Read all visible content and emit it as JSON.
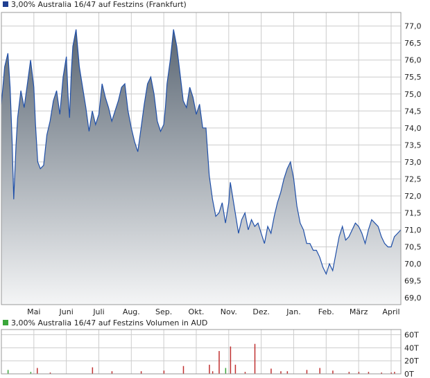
{
  "colors": {
    "price_line": "#1f4fa8",
    "area_top": "#5a6673",
    "area_bottom": "#f4f5f6",
    "grid": "#cccccc",
    "frame": "#999999",
    "volume_up": "#3aa63a",
    "volume_down": "#c03030",
    "legend_price": "#1f3f91",
    "legend_volume": "#3aa63a"
  },
  "chart_data": [
    {
      "type": "area",
      "legend": "3,00% Australia 16/47 auf Festzins (Frankfurt)",
      "y_axis_side": "right",
      "ylim": [
        68.8,
        77.4
      ],
      "yticks": [
        "77,0",
        "76,5",
        "76,0",
        "75,5",
        "75,0",
        "74,5",
        "74,0",
        "73,5",
        "73,0",
        "72,5",
        "72,0",
        "71,5",
        "71,0",
        "70,5",
        "70,0",
        "69,5",
        "69,0"
      ],
      "ytick_values": [
        77.0,
        76.5,
        76.0,
        75.5,
        75.0,
        74.5,
        74.0,
        73.5,
        73.0,
        72.5,
        72.0,
        71.5,
        71.0,
        70.5,
        70.0,
        69.5,
        69.0
      ],
      "x_range": [
        0,
        12.3
      ],
      "xticks": [
        "Mai",
        "Juni",
        "Juli",
        "Aug.",
        "Sep.",
        "Okt.",
        "Nov.",
        "Dez.",
        "Jan.",
        "Feb.",
        "März",
        "April"
      ],
      "xtick_positions": [
        1,
        2,
        3,
        4,
        5,
        6,
        7,
        8,
        9,
        10,
        11,
        12
      ],
      "grid": true,
      "series": [
        {
          "x": [
            0.0,
            0.1,
            0.2,
            0.27,
            0.33,
            0.38,
            0.45,
            0.5,
            0.6,
            0.7,
            0.8,
            0.9,
            1.0,
            1.05,
            1.12,
            1.2,
            1.3,
            1.4,
            1.5,
            1.6,
            1.7,
            1.8,
            1.9,
            2.0,
            2.05,
            2.1,
            2.15,
            2.2,
            2.3,
            2.4,
            2.5,
            2.6,
            2.7,
            2.8,
            2.9,
            3.0,
            3.1,
            3.2,
            3.3,
            3.4,
            3.5,
            3.6,
            3.7,
            3.8,
            3.9,
            4.0,
            4.1,
            4.2,
            4.3,
            4.4,
            4.5,
            4.6,
            4.7,
            4.8,
            4.9,
            5.0,
            5.05,
            5.1,
            5.2,
            5.3,
            5.4,
            5.5,
            5.6,
            5.7,
            5.8,
            5.9,
            6.0,
            6.1,
            6.2,
            6.3,
            6.4,
            6.5,
            6.6,
            6.7,
            6.8,
            6.9,
            7.0,
            7.05,
            7.1,
            7.2,
            7.3,
            7.4,
            7.5,
            7.6,
            7.7,
            7.8,
            7.9,
            8.0,
            8.1,
            8.2,
            8.3,
            8.4,
            8.5,
            8.6,
            8.7,
            8.8,
            8.9,
            9.0,
            9.1,
            9.2,
            9.3,
            9.4,
            9.5,
            9.6,
            9.7,
            9.8,
            9.9,
            10.0,
            10.1,
            10.2,
            10.3,
            10.4,
            10.5,
            10.6,
            10.7,
            10.8,
            10.9,
            11.0,
            11.1,
            11.2,
            11.3,
            11.4,
            11.5,
            11.6,
            11.7,
            11.8,
            11.9,
            12.0,
            12.1,
            12.2,
            12.3
          ],
          "y": [
            74.7,
            75.8,
            76.2,
            75.2,
            73.6,
            71.9,
            73.5,
            74.3,
            75.1,
            74.6,
            75.3,
            76.0,
            75.2,
            74.1,
            73.0,
            72.8,
            72.9,
            73.8,
            74.2,
            74.8,
            75.1,
            74.4,
            75.5,
            76.1,
            75.0,
            74.3,
            75.6,
            76.4,
            76.9,
            75.8,
            75.2,
            74.6,
            73.9,
            74.5,
            74.1,
            74.4,
            75.3,
            74.9,
            74.6,
            74.2,
            74.5,
            74.8,
            75.2,
            75.3,
            74.5,
            74.0,
            73.6,
            73.3,
            74.0,
            74.7,
            75.3,
            75.5,
            75.0,
            74.2,
            73.9,
            74.1,
            74.6,
            75.3,
            76.0,
            76.9,
            76.4,
            75.6,
            74.8,
            74.6,
            75.2,
            74.9,
            74.4,
            74.7,
            74.0,
            74.0,
            72.6,
            71.9,
            71.4,
            71.5,
            71.8,
            71.2,
            71.8,
            72.4,
            72.1,
            71.5,
            70.9,
            71.3,
            71.5,
            71.0,
            71.3,
            71.1,
            71.2,
            70.9,
            70.6,
            71.1,
            70.9,
            71.4,
            71.8,
            72.1,
            72.5,
            72.8,
            73.0,
            72.5,
            71.7,
            71.2,
            71.0,
            70.6,
            70.6,
            70.4,
            70.4,
            70.2,
            69.9,
            69.7,
            70.0,
            69.8,
            70.3,
            70.8,
            71.1,
            70.7,
            70.8,
            71.0,
            71.2,
            71.1,
            70.9,
            70.6,
            71.0,
            71.3,
            71.2,
            71.1,
            70.8,
            70.6,
            70.5,
            70.5,
            70.8,
            70.9,
            71.0
          ],
          "name": "3,00% Australia 16/47 auf Festzins (Frankfurt)"
        }
      ]
    },
    {
      "type": "bar",
      "legend": "3,00% Australia 16/47 auf Festzins Volumen in AUD",
      "y_axis_side": "right",
      "ylim": [
        0,
        68
      ],
      "yticks": [
        "60T",
        "40T",
        "20T",
        "0T"
      ],
      "ytick_values": [
        60,
        40,
        20,
        0
      ],
      "x_range": [
        0,
        12.3
      ],
      "grid": true,
      "series": [
        {
          "name": "3,00% Australia 16/47 auf Festzins Volumen in AUD",
          "x": [
            0.2,
            0.9,
            1.1,
            1.5,
            2.8,
            3.4,
            4.3,
            5.0,
            5.6,
            6.4,
            6.5,
            6.7,
            6.9,
            7.05,
            7.2,
            7.5,
            7.8,
            8.3,
            8.6,
            8.8,
            9.4,
            9.8,
            10.2,
            10.7,
            11.0,
            11.3,
            11.7,
            12.0,
            12.1
          ],
          "values": [
            6,
            3,
            9,
            2,
            10,
            4,
            4,
            5,
            12,
            14,
            4,
            35,
            9,
            42,
            14,
            3,
            46,
            8,
            4,
            4,
            6,
            9,
            5,
            3,
            3,
            3,
            2,
            2,
            3
          ],
          "up": [
            true,
            true,
            false,
            false,
            false,
            false,
            false,
            false,
            false,
            false,
            false,
            false,
            true,
            false,
            false,
            false,
            false,
            false,
            false,
            false,
            false,
            false,
            false,
            false,
            false,
            false,
            false,
            false,
            false
          ]
        }
      ]
    }
  ]
}
